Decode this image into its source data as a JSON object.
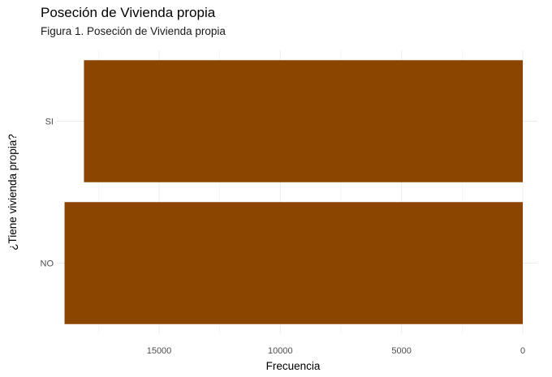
{
  "title": "Poseción de Vivienda propia",
  "subtitle": "Figura 1. Poseción de Vivienda propia",
  "chart_data": {
    "type": "bar",
    "orientation": "horizontal",
    "x_reversed": true,
    "title": "Poseción de Vivienda propia",
    "subtitle": "Figura 1. Poseción de Vivienda propia",
    "xlabel": "Frecuencia",
    "ylabel": "¿Tiene vivienda propia?",
    "categories": [
      "NO",
      "SI"
    ],
    "values": [
      18900,
      18100
    ],
    "xlim": [
      0,
      19000
    ],
    "x_ticks": [
      0,
      5000,
      10000,
      15000
    ],
    "grid": true,
    "bar_color": "#8B4500",
    "grid_color": "#ebebeb"
  }
}
